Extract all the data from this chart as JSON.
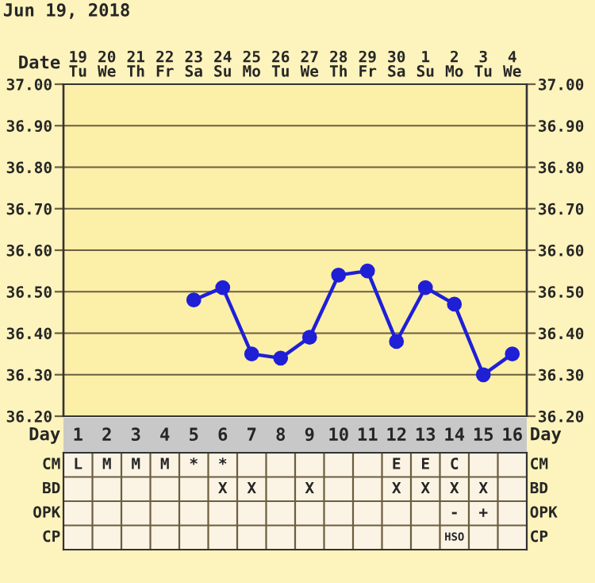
{
  "chart_data": [
    {
      "type": "line",
      "title": "Jun 19, 2018",
      "xlabel": "Day",
      "categories": [
        "1",
        "2",
        "3",
        "4",
        "5",
        "6",
        "7",
        "8",
        "9",
        "10",
        "11",
        "12",
        "13",
        "14",
        "15",
        "16"
      ],
      "series": [
        {
          "color": "#1f1fd6",
          "values": [
            null,
            null,
            null,
            null,
            36.48,
            36.51,
            36.35,
            36.34,
            36.39,
            36.54,
            36.55,
            36.38,
            36.51,
            36.47,
            36.3,
            36.35
          ]
        }
      ],
      "ylim": [
        36.2,
        37.0
      ],
      "yticks": [
        {
          "value": 36.2,
          "label": "36.20"
        },
        {
          "value": 36.3,
          "label": "36.30"
        },
        {
          "value": 36.4,
          "label": "36.40"
        },
        {
          "value": 36.5,
          "label": "36.50"
        },
        {
          "value": 36.6,
          "label": "36.60"
        },
        {
          "value": 36.7,
          "label": "36.70"
        },
        {
          "value": 36.8,
          "label": "36.80"
        },
        {
          "value": 36.9,
          "label": "36.90"
        },
        {
          "value": 37.0,
          "label": "37.00"
        }
      ],
      "y2lim": [
        36.2,
        37.0
      ],
      "y2ticks": [
        {
          "value": 36.2,
          "label": "36.20"
        },
        {
          "value": 36.3,
          "label": "36.30"
        },
        {
          "value": 36.4,
          "label": "36.40"
        },
        {
          "value": 36.5,
          "label": "36.50"
        },
        {
          "value": 36.6,
          "label": "36.60"
        },
        {
          "value": 36.7,
          "label": "36.70"
        },
        {
          "value": 36.8,
          "label": "36.80"
        },
        {
          "value": 36.9,
          "label": "36.90"
        },
        {
          "value": 37.0,
          "label": "37.00"
        }
      ],
      "grid": true,
      "marker": "circle",
      "line_style": "solid",
      "x2label": "Date",
      "x2lim": [
        "2018-06-18T12:00",
        "2018-07-04T12:00"
      ],
      "x2ticks": [
        {
          "value": "2018-06-19",
          "label": "19\nTu"
        },
        {
          "value": "2018-06-20",
          "label": "20\nWe"
        },
        {
          "value": "2018-06-21",
          "label": "21\nTh"
        },
        {
          "value": "2018-06-22",
          "label": "22\nFr"
        },
        {
          "value": "2018-06-23",
          "label": "23\nSa"
        },
        {
          "value": "2018-06-24",
          "label": "24\nSu"
        },
        {
          "value": "2018-06-25",
          "label": "25\nMo"
        },
        {
          "value": "2018-06-26",
          "label": "26\nTu"
        },
        {
          "value": "2018-06-27",
          "label": "27\nWe"
        },
        {
          "value": "2018-06-28",
          "label": "28\nTh"
        },
        {
          "value": "2018-06-29",
          "label": "29\nFr"
        },
        {
          "value": "2018-06-30",
          "label": "30\nSa"
        },
        {
          "value": "2018-07-01",
          "label": "1\nSu"
        },
        {
          "value": "2018-07-02",
          "label": "2\nMo"
        },
        {
          "value": "2018-07-03",
          "label": "3\nTu"
        },
        {
          "value": "2018-07-04",
          "label": "4\nWe"
        }
      ]
    },
    {
      "type": "other",
      "annotations": [
        "CM",
        "BD",
        "OPK",
        "CP",
        {
          "text": "L",
          "x": "1",
          "y": "CM"
        },
        {
          "text": "M",
          "x": "2",
          "y": "CM"
        },
        {
          "text": "M",
          "x": "3",
          "y": "CM"
        },
        {
          "text": "M",
          "x": "4",
          "y": "CM"
        },
        {
          "text": "*",
          "x": "5",
          "y": "CM"
        },
        {
          "text": "*",
          "x": "6",
          "y": "CM"
        },
        {
          "text": "E",
          "x": "12",
          "y": "CM"
        },
        {
          "text": "E",
          "x": "13",
          "y": "CM"
        },
        {
          "text": "C",
          "x": "14",
          "y": "CM"
        },
        {
          "text": "X",
          "x": "6",
          "y": "BD"
        },
        {
          "text": "X",
          "x": "7",
          "y": "BD"
        },
        {
          "text": "X",
          "x": "9",
          "y": "BD"
        },
        {
          "text": "X",
          "x": "12",
          "y": "BD"
        },
        {
          "text": "X",
          "x": "13",
          "y": "BD"
        },
        {
          "text": "X",
          "x": "14",
          "y": "BD"
        },
        {
          "text": "X",
          "x": "15",
          "y": "BD"
        },
        {
          "text": "-",
          "x": "14",
          "y": "OPK"
        },
        {
          "text": "+",
          "x": "15",
          "y": "OPK"
        },
        {
          "text": "HSO",
          "x": "14",
          "y": "CP"
        }
      ]
    }
  ]
}
